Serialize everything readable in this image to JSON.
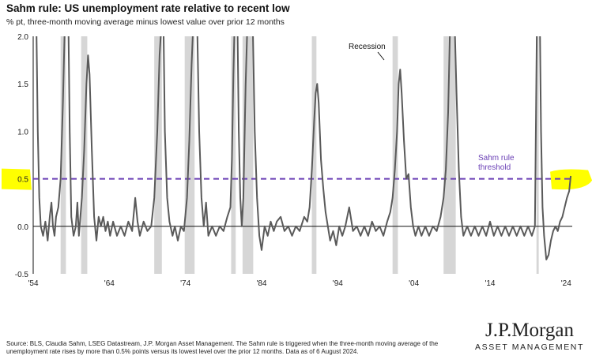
{
  "header": {
    "title": "Sahm rule: US unemployment rate relative to recent low",
    "subtitle": "% pt, three-month moving average minus lowest value over prior 12 months"
  },
  "footer": {
    "source": "Source: BLS, Claudia Sahm, LSEG Datastream, J.P. Morgan Asset Management. The Sahm rule is triggered when the three-month moving average of the unemployment rate rises by more than 0.5% points versus its lowest level over the prior 12 months. Data as of 6 August 2024.",
    "logo_name": "J.P.Morgan",
    "logo_sub": "ASSET MANAGEMENT"
  },
  "colors": {
    "line": "#5a5a5a",
    "recession": "#d6d6d6",
    "threshold": "#6a3fb5",
    "highlight": "#ffff00",
    "axis": "#111111"
  },
  "chart_data": {
    "type": "line",
    "xlim": [
      1954.0,
      2024.8
    ],
    "ylim": [
      -0.5,
      2.0
    ],
    "x_tick_labels": [
      "'54",
      "'64",
      "'74",
      "'84",
      "'94",
      "'04",
      "'14",
      "'24"
    ],
    "x_tick_values": [
      1954,
      1964,
      1974,
      1984,
      1994,
      2004,
      2014,
      2024
    ],
    "y_tick_labels": [
      "2.0",
      "1.5",
      "1.0",
      "0.5",
      "0.0",
      "-0.5"
    ],
    "y_tick_values": [
      2.0,
      1.5,
      1.0,
      0.5,
      0.0,
      -0.5
    ],
    "threshold": {
      "value": 0.5,
      "label_line1": "Sahm rule",
      "label_line2": "threshold"
    },
    "recession_label": "Recession",
    "recessions": [
      [
        1957.6,
        1958.3
      ],
      [
        1960.3,
        1961.1
      ],
      [
        1969.9,
        1970.9
      ],
      [
        1973.9,
        1975.2
      ],
      [
        1980.0,
        1980.6
      ],
      [
        1981.5,
        1982.9
      ],
      [
        1990.6,
        1991.2
      ],
      [
        2001.2,
        2001.9
      ],
      [
        2007.9,
        2009.5
      ],
      [
        2020.1,
        2020.4
      ]
    ],
    "series": [
      {
        "points": [
          [
            1954.0,
            2.5
          ],
          [
            1954.4,
            2.2
          ],
          [
            1954.6,
            1.0
          ],
          [
            1954.8,
            0.3
          ],
          [
            1955.0,
            0.0
          ],
          [
            1955.3,
            -0.1
          ],
          [
            1955.6,
            0.05
          ],
          [
            1955.9,
            -0.15
          ],
          [
            1956.2,
            0.12
          ],
          [
            1956.4,
            0.25
          ],
          [
            1956.6,
            0.0
          ],
          [
            1956.8,
            -0.1
          ],
          [
            1957.0,
            0.1
          ],
          [
            1957.3,
            0.2
          ],
          [
            1957.6,
            0.5
          ],
          [
            1957.9,
            1.3
          ],
          [
            1958.2,
            2.3
          ],
          [
            1958.6,
            2.3
          ],
          [
            1958.8,
            1.0
          ],
          [
            1959.0,
            0.1
          ],
          [
            1959.3,
            -0.1
          ],
          [
            1959.6,
            0.0
          ],
          [
            1959.8,
            0.25
          ],
          [
            1960.0,
            -0.1
          ],
          [
            1960.4,
            0.3
          ],
          [
            1960.7,
            0.8
          ],
          [
            1961.0,
            1.5
          ],
          [
            1961.2,
            1.8
          ],
          [
            1961.4,
            1.6
          ],
          [
            1961.7,
            0.8
          ],
          [
            1962.0,
            0.1
          ],
          [
            1962.3,
            -0.15
          ],
          [
            1962.6,
            0.1
          ],
          [
            1962.9,
            0.0
          ],
          [
            1963.2,
            0.1
          ],
          [
            1963.5,
            -0.05
          ],
          [
            1963.8,
            0.05
          ],
          [
            1964.1,
            -0.1
          ],
          [
            1964.5,
            0.05
          ],
          [
            1965.0,
            -0.1
          ],
          [
            1965.5,
            0.0
          ],
          [
            1966.0,
            -0.1
          ],
          [
            1966.5,
            0.05
          ],
          [
            1967.0,
            -0.05
          ],
          [
            1967.4,
            0.3
          ],
          [
            1967.7,
            0.05
          ],
          [
            1968.0,
            -0.1
          ],
          [
            1968.5,
            0.05
          ],
          [
            1969.0,
            -0.05
          ],
          [
            1969.5,
            0.0
          ],
          [
            1969.9,
            0.3
          ],
          [
            1970.3,
            1.0
          ],
          [
            1970.6,
            1.8
          ],
          [
            1970.9,
            2.2
          ],
          [
            1971.1,
            2.2
          ],
          [
            1971.3,
            1.0
          ],
          [
            1971.6,
            0.3
          ],
          [
            1971.9,
            0.05
          ],
          [
            1972.3,
            -0.1
          ],
          [
            1972.6,
            0.0
          ],
          [
            1973.0,
            -0.15
          ],
          [
            1973.4,
            0.0
          ],
          [
            1973.8,
            -0.05
          ],
          [
            1974.2,
            0.3
          ],
          [
            1974.5,
            0.9
          ],
          [
            1974.8,
            1.7
          ],
          [
            1975.1,
            2.3
          ],
          [
            1975.5,
            2.3
          ],
          [
            1975.8,
            1.0
          ],
          [
            1976.1,
            0.3
          ],
          [
            1976.4,
            0.0
          ],
          [
            1976.7,
            0.25
          ],
          [
            1977.0,
            -0.1
          ],
          [
            1977.5,
            0.0
          ],
          [
            1978.0,
            -0.1
          ],
          [
            1978.5,
            0.0
          ],
          [
            1979.0,
            -0.05
          ],
          [
            1979.5,
            0.1
          ],
          [
            1979.9,
            0.2
          ],
          [
            1980.1,
            0.7
          ],
          [
            1980.3,
            1.6
          ],
          [
            1980.5,
            2.3
          ],
          [
            1980.8,
            2.3
          ],
          [
            1981.0,
            1.0
          ],
          [
            1981.2,
            0.3
          ],
          [
            1981.4,
            0.0
          ],
          [
            1981.6,
            0.3
          ],
          [
            1981.9,
            1.5
          ],
          [
            1982.2,
            2.3
          ],
          [
            1982.8,
            2.3
          ],
          [
            1983.1,
            1.0
          ],
          [
            1983.4,
            0.3
          ],
          [
            1983.7,
            -0.1
          ],
          [
            1984.0,
            -0.25
          ],
          [
            1984.4,
            0.0
          ],
          [
            1984.8,
            -0.1
          ],
          [
            1985.2,
            0.05
          ],
          [
            1985.6,
            -0.05
          ],
          [
            1986.0,
            0.05
          ],
          [
            1986.5,
            0.1
          ],
          [
            1987.0,
            -0.05
          ],
          [
            1987.5,
            0.0
          ],
          [
            1988.0,
            -0.1
          ],
          [
            1988.5,
            0.0
          ],
          [
            1989.0,
            -0.05
          ],
          [
            1989.6,
            0.1
          ],
          [
            1990.0,
            0.05
          ],
          [
            1990.3,
            0.2
          ],
          [
            1990.6,
            0.6
          ],
          [
            1990.9,
            1.1
          ],
          [
            1991.1,
            1.4
          ],
          [
            1991.3,
            1.5
          ],
          [
            1991.5,
            1.3
          ],
          [
            1991.8,
            0.7
          ],
          [
            1992.1,
            0.4
          ],
          [
            1992.4,
            0.15
          ],
          [
            1992.7,
            0.0
          ],
          [
            1993.0,
            -0.15
          ],
          [
            1993.4,
            -0.05
          ],
          [
            1993.8,
            -0.2
          ],
          [
            1994.2,
            0.0
          ],
          [
            1994.6,
            -0.1
          ],
          [
            1995.0,
            0.0
          ],
          [
            1995.5,
            0.2
          ],
          [
            1996.0,
            -0.05
          ],
          [
            1996.5,
            0.0
          ],
          [
            1997.0,
            -0.1
          ],
          [
            1997.5,
            0.0
          ],
          [
            1998.0,
            -0.1
          ],
          [
            1998.5,
            0.05
          ],
          [
            1999.0,
            -0.05
          ],
          [
            1999.5,
            0.0
          ],
          [
            2000.0,
            -0.1
          ],
          [
            2000.5,
            0.05
          ],
          [
            2000.9,
            0.15
          ],
          [
            2001.2,
            0.3
          ],
          [
            2001.5,
            0.6
          ],
          [
            2001.8,
            1.0
          ],
          [
            2002.0,
            1.5
          ],
          [
            2002.2,
            1.65
          ],
          [
            2002.4,
            1.4
          ],
          [
            2002.7,
            0.9
          ],
          [
            2003.0,
            0.5
          ],
          [
            2003.3,
            0.55
          ],
          [
            2003.6,
            0.2
          ],
          [
            2003.9,
            0.0
          ],
          [
            2004.2,
            -0.1
          ],
          [
            2004.6,
            0.0
          ],
          [
            2005.0,
            -0.1
          ],
          [
            2005.5,
            0.0
          ],
          [
            2006.0,
            -0.1
          ],
          [
            2006.5,
            0.0
          ],
          [
            2007.0,
            -0.05
          ],
          [
            2007.5,
            0.1
          ],
          [
            2007.9,
            0.3
          ],
          [
            2008.2,
            0.6
          ],
          [
            2008.5,
            1.2
          ],
          [
            2008.8,
            2.3
          ],
          [
            2009.3,
            2.3
          ],
          [
            2009.6,
            1.4
          ],
          [
            2009.9,
            0.6
          ],
          [
            2010.2,
            0.1
          ],
          [
            2010.5,
            -0.1
          ],
          [
            2011.0,
            0.0
          ],
          [
            2011.5,
            -0.1
          ],
          [
            2012.0,
            0.0
          ],
          [
            2012.5,
            -0.1
          ],
          [
            2013.0,
            0.0
          ],
          [
            2013.5,
            -0.1
          ],
          [
            2014.0,
            0.05
          ],
          [
            2014.5,
            -0.1
          ],
          [
            2015.0,
            0.0
          ],
          [
            2015.5,
            -0.1
          ],
          [
            2016.0,
            0.0
          ],
          [
            2016.5,
            -0.1
          ],
          [
            2017.0,
            0.0
          ],
          [
            2017.5,
            -0.1
          ],
          [
            2018.0,
            0.0
          ],
          [
            2018.5,
            -0.1
          ],
          [
            2019.0,
            0.0
          ],
          [
            2019.5,
            -0.1
          ],
          [
            2019.9,
            0.0
          ],
          [
            2020.2,
            2.5
          ],
          [
            2020.5,
            2.5
          ],
          [
            2020.7,
            1.0
          ],
          [
            2020.9,
            0.2
          ],
          [
            2021.1,
            -0.1
          ],
          [
            2021.4,
            -0.35
          ],
          [
            2021.7,
            -0.3
          ],
          [
            2022.0,
            -0.15
          ],
          [
            2022.3,
            -0.05
          ],
          [
            2022.6,
            0.0
          ],
          [
            2022.9,
            -0.05
          ],
          [
            2023.2,
            0.05
          ],
          [
            2023.5,
            0.1
          ],
          [
            2023.8,
            0.2
          ],
          [
            2024.1,
            0.3
          ],
          [
            2024.4,
            0.37
          ],
          [
            2024.6,
            0.53
          ]
        ]
      }
    ]
  }
}
